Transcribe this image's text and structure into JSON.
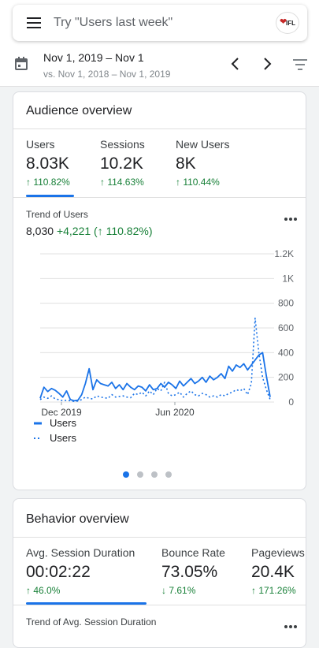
{
  "search": {
    "placeholder": "Try \"Users last week\"",
    "logo_text": "IFL"
  },
  "date": {
    "range": "Nov 1, 2019 – Nov 1",
    "compare": "vs. Nov 1, 2018 – Nov 1, 2019"
  },
  "icons": {
    "menu": "hamburger-menu-icon",
    "calendar": "calendar-icon",
    "prev": "chevron-left-icon",
    "next": "chevron-right-icon",
    "filter": "filter-icon",
    "more": "more-options-icon"
  },
  "colors": {
    "accent": "#1a73e8",
    "positive": "#188038"
  },
  "audience": {
    "title": "Audience overview",
    "metrics": [
      {
        "label": "Users",
        "value": "8.03K",
        "change": "↑ 110.82%"
      },
      {
        "label": "Sessions",
        "value": "10.2K",
        "change": "↑ 114.63%"
      },
      {
        "label": "New Users",
        "value": "8K",
        "change": "↑ 110.44%"
      }
    ],
    "trend_title": "Trend of Users",
    "trend_value": "8,030",
    "trend_delta": "+4,221",
    "trend_pct": "(↑ 110.82%)",
    "legend": [
      "Users",
      "Users"
    ],
    "carousel": {
      "pages": 4,
      "active": 1
    }
  },
  "behavior": {
    "title": "Behavior overview",
    "metrics": [
      {
        "label": "Avg. Session Duration",
        "value": "00:02:22",
        "change": "↑ 46.0%"
      },
      {
        "label": "Bounce Rate",
        "value": "73.05%",
        "change": "↓ 7.61%"
      },
      {
        "label": "Pageviews",
        "value": "20.4K",
        "change": "↑ 171.26%"
      }
    ],
    "trend_title": "Trend of Avg. Session Duration"
  },
  "chart_data": {
    "type": "line",
    "x_tick_labels": [
      "Dec 2019",
      "Jun 2020"
    ],
    "y_tick_labels": [
      "0",
      "200",
      "400",
      "600",
      "800",
      "1K",
      "1.2K"
    ],
    "ylim": [
      0,
      1200
    ],
    "grid": true,
    "legend_position": "bottom-left",
    "series": [
      {
        "name": "Users",
        "style": "solid",
        "color": "#1a73e8",
        "values": [
          30,
          120,
          85,
          110,
          95,
          70,
          40,
          90,
          20,
          10,
          15,
          60,
          150,
          270,
          100,
          180,
          150,
          140,
          130,
          160,
          110,
          140,
          100,
          150,
          120,
          100,
          130,
          120,
          90,
          140,
          100,
          110,
          150,
          120,
          160,
          140,
          110,
          170,
          130,
          160,
          190,
          150,
          170,
          200,
          160,
          210,
          180,
          200,
          230,
          190,
          290,
          250,
          300,
          280,
          310,
          260,
          300,
          340,
          380,
          400,
          210,
          40
        ]
      },
      {
        "name": "Users",
        "style": "dotted",
        "color": "#1a73e8",
        "values": [
          20,
          40,
          30,
          50,
          25,
          20,
          10,
          15,
          10,
          5,
          8,
          20,
          40,
          30,
          25,
          50,
          40,
          35,
          30,
          60,
          40,
          45,
          50,
          40,
          35,
          70,
          60,
          80,
          50,
          90,
          60,
          110,
          90,
          160,
          70,
          50,
          60,
          80,
          40,
          70,
          90,
          60,
          50,
          70,
          60,
          40,
          50,
          40,
          60,
          50,
          70,
          80,
          100,
          90,
          110,
          60,
          150,
          680,
          400,
          200,
          100,
          20
        ]
      }
    ]
  }
}
